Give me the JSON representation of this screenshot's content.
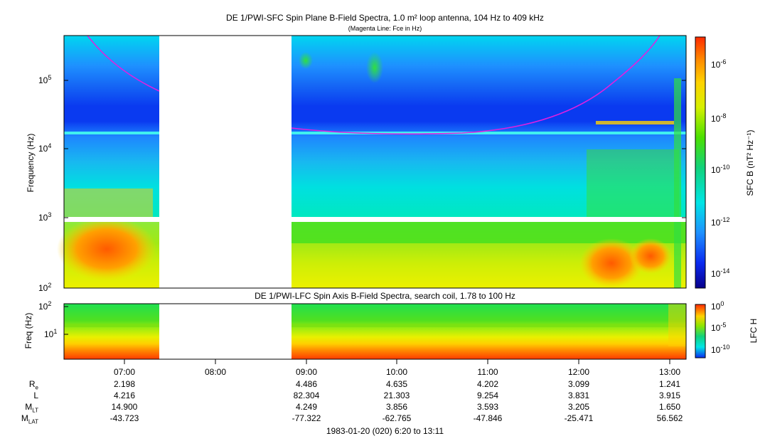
{
  "sfc": {
    "title": "DE 1/PWI-SFC  Spin Plane B-Field Spectra, 1.0 m² loop antenna, 104 Hz to 409 kHz",
    "subtitle": "(Magenta Line: Fce in Hz)",
    "ylabel": "Frequency (Hz)",
    "yticks": [
      "10",
      "10",
      "10",
      "10"
    ],
    "yexp": [
      "5",
      "4",
      "3",
      "2"
    ],
    "colorbar_label": "SFC B (nT² Hz⁻¹)",
    "colorbar_ticks": [
      "10",
      "10",
      "10",
      "10",
      "10"
    ],
    "colorbar_exp": [
      "-6",
      "-8",
      "-10",
      "-12",
      "-14"
    ]
  },
  "lfc": {
    "title": "DE 1/PWI-LFC  Spin Axis B-Field Spectra, search coil, 1.78 to 100 Hz",
    "ylabel": "Freq (Hz)",
    "yticks": [
      "10",
      "10"
    ],
    "yexp": [
      "2",
      "1"
    ],
    "colorbar_label": "LFC H",
    "colorbar_ticks": [
      "10",
      "10",
      "10"
    ],
    "colorbar_exp": [
      "0",
      "-5",
      "-10"
    ]
  },
  "xaxis": {
    "ticks": [
      "07:00",
      "08:00",
      "09:00",
      "10:00",
      "11:00",
      "12:00",
      "13:00"
    ],
    "caption": "1983-01-20 (020) 6:20 to 13:11"
  },
  "ephemeris": {
    "rows": [
      {
        "label": "R",
        "sub": "e",
        "values": [
          "2.198",
          "",
          "4.486",
          "4.635",
          "4.202",
          "3.099",
          "1.241"
        ]
      },
      {
        "label": "L",
        "sub": "",
        "values": [
          "4.216",
          "",
          "82.304",
          "21.303",
          "9.254",
          "3.831",
          "3.915"
        ]
      },
      {
        "label": "M",
        "sub": "LT",
        "values": [
          "14.900",
          "",
          "4.249",
          "3.856",
          "3.593",
          "3.205",
          "1.650"
        ]
      },
      {
        "label": "M",
        "sub": "LAT",
        "values": [
          "-43.723",
          "",
          "-77.322",
          "-62.765",
          "-47.846",
          "-25.471",
          "56.562"
        ]
      }
    ]
  },
  "colors": {
    "fce_line": "#e020e0",
    "gap": "#ffffff",
    "scale": [
      "#08008a",
      "#0a2af0",
      "#1e90ff",
      "#00e5e5",
      "#11d27a",
      "#4be000",
      "#d6f000",
      "#ffd200",
      "#ff8a00",
      "#ff2a00"
    ]
  },
  "chart_data": {
    "type": "heatmap",
    "time_range": [
      "06:20",
      "13:11"
    ],
    "data_gap": [
      "07:37",
      "08:47"
    ],
    "sfc_frequency_range_hz": [
      104,
      409000
    ],
    "lfc_frequency_range_hz": [
      1.78,
      100
    ],
    "fce_line_hz": {
      "x": [
        "06:20",
        "06:45",
        "07:00",
        "07:15",
        "07:37",
        "08:47",
        "09:30",
        "10:00",
        "10:30",
        "11:00",
        "11:30",
        "12:00",
        "12:15",
        "12:30",
        "12:45",
        "13:00",
        "13:05"
      ],
      "y": [
        409000,
        200000,
        130000,
        95000,
        70000,
        17000,
        15500,
        15000,
        15200,
        16500,
        20000,
        30000,
        45000,
        70000,
        120000,
        250000,
        400000
      ]
    }
  }
}
